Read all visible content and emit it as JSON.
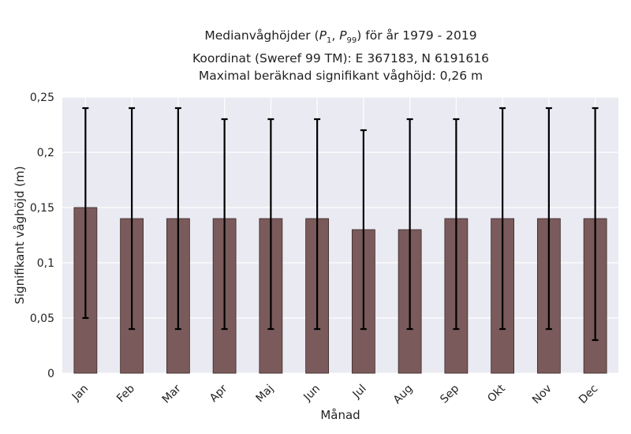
{
  "chart_data": {
    "type": "bar",
    "title": [
      "Medianvåghöjder (P1, P99) för år 1979 - 2019",
      "Koordinat (Sweref 99 TM): E 367183, N 6191616",
      "Maximal beräknad signifikant våghöjd: 0,26 m"
    ],
    "xlabel": "Månad",
    "ylabel": "Signifikant våghöjd (m)",
    "ylim": [
      0,
      0.25
    ],
    "y_ticks": [
      "0",
      "0,05",
      "0,1",
      "0,15",
      "0,2",
      "0,25"
    ],
    "categories": [
      "Jan",
      "Feb",
      "Mar",
      "Apr",
      "Maj",
      "Jun",
      "Jul",
      "Aug",
      "Sep",
      "Okt",
      "Nov",
      "Dec"
    ],
    "values": [
      0.15,
      0.14,
      0.14,
      0.14,
      0.14,
      0.14,
      0.13,
      0.13,
      0.14,
      0.14,
      0.14,
      0.14
    ],
    "p1": [
      0.05,
      0.04,
      0.04,
      0.04,
      0.04,
      0.04,
      0.04,
      0.04,
      0.04,
      0.04,
      0.04,
      0.03
    ],
    "p99": [
      0.24,
      0.24,
      0.24,
      0.23,
      0.23,
      0.23,
      0.22,
      0.23,
      0.23,
      0.24,
      0.24,
      0.24
    ],
    "grid": true,
    "colors": {
      "bar": "#7a5a5a",
      "bar_edge": "#3a2a2a",
      "error": "#000000",
      "background": "#eaeaf2",
      "grid": "#ffffff"
    }
  }
}
